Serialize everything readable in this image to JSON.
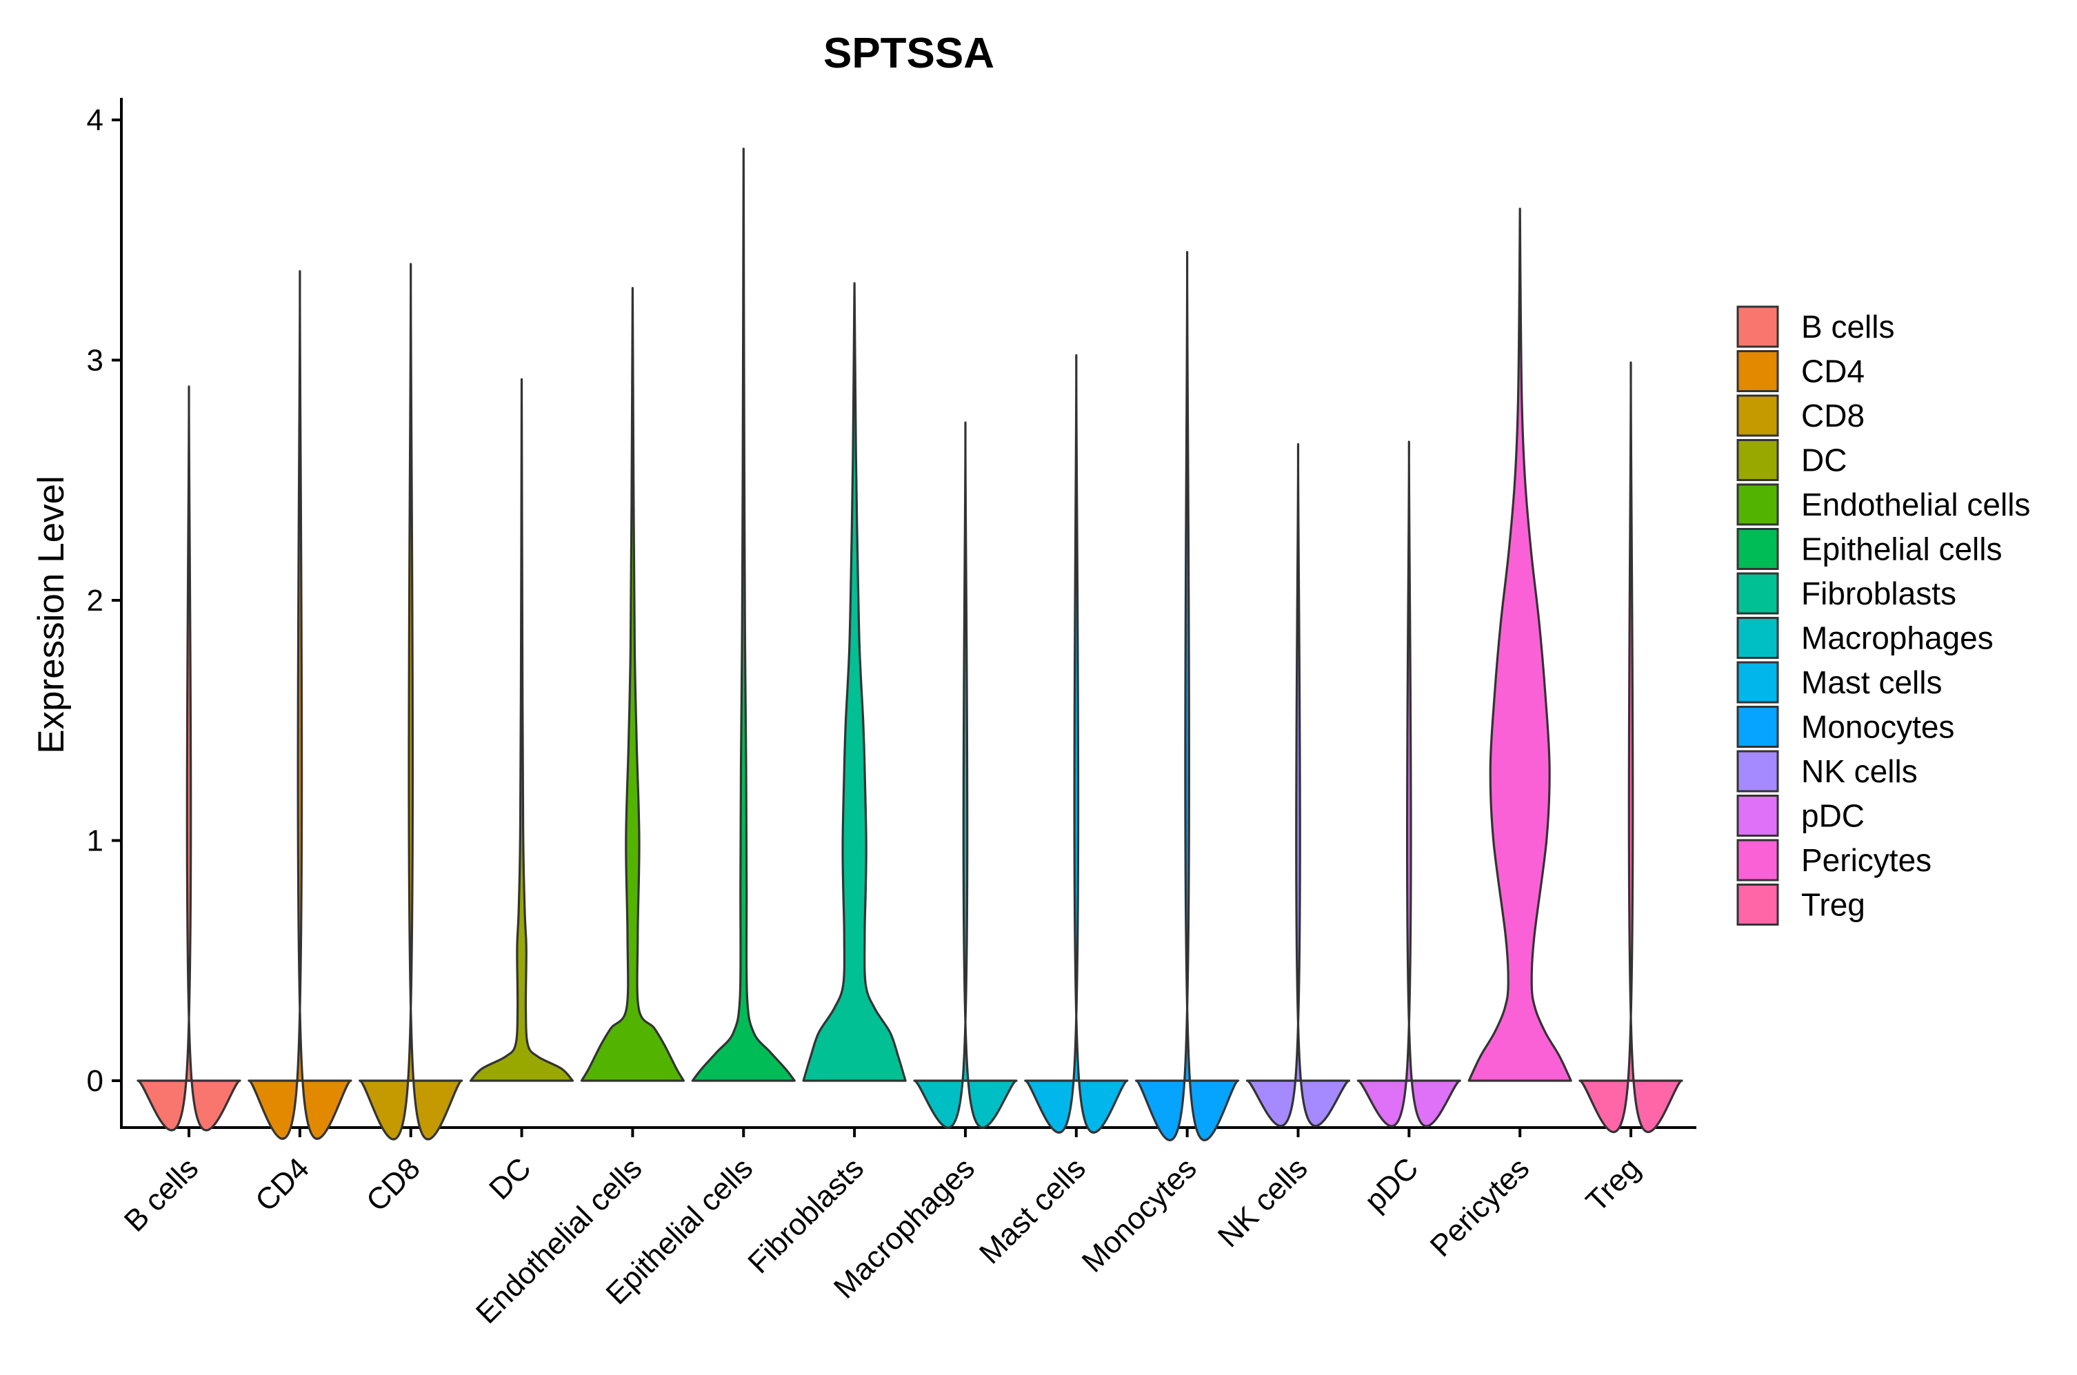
{
  "chart_data": {
    "type": "violin",
    "title": "SPTSSA",
    "xlabel": "",
    "ylabel": "Expression Level",
    "ylim": [
      -0.19,
      4.08
    ],
    "yticks": [
      0,
      1,
      2,
      3,
      4
    ],
    "grid": false,
    "legend_position": "right",
    "categories": [
      "B cells",
      "CD4",
      "CD8",
      "DC",
      "Endothelial cells",
      "Epithelial cells",
      "Fibroblasts",
      "Macrophages",
      "Mast cells",
      "Monocytes",
      "NK cells",
      "pDC",
      "Pericytes",
      "Treg"
    ],
    "colors": [
      "#F8766D",
      "#E38900",
      "#C49A00",
      "#99A800",
      "#53B400",
      "#00BC56",
      "#00C094",
      "#00BFC4",
      "#00B6EB",
      "#06A4FF",
      "#A58AFF",
      "#DF70F8",
      "#FB61D7",
      "#FF66A8"
    ],
    "max_values": [
      2.89,
      3.37,
      3.4,
      2.92,
      3.3,
      3.88,
      3.32,
      2.74,
      3.02,
      3.45,
      2.65,
      2.66,
      3.63,
      2.99
    ],
    "density_profiles": [
      [
        [
          0,
          1.0
        ],
        [
          0.01,
          0.05
        ],
        [
          2.89,
          0.0
        ]
      ],
      [
        [
          0,
          1.0
        ],
        [
          0.01,
          0.05
        ],
        [
          3.37,
          0.0
        ]
      ],
      [
        [
          0,
          1.0
        ],
        [
          0.01,
          0.05
        ],
        [
          3.4,
          0.0
        ]
      ],
      [
        [
          0,
          1.0
        ],
        [
          0.05,
          0.78
        ],
        [
          0.1,
          0.32
        ],
        [
          0.15,
          0.12
        ],
        [
          0.3,
          0.08
        ],
        [
          0.55,
          0.09
        ],
        [
          0.7,
          0.06
        ],
        [
          1.0,
          0.03
        ],
        [
          1.6,
          0.015
        ],
        [
          2.92,
          0.0
        ]
      ],
      [
        [
          0,
          1.0
        ],
        [
          0.05,
          0.86
        ],
        [
          0.15,
          0.62
        ],
        [
          0.22,
          0.42
        ],
        [
          0.3,
          0.12
        ],
        [
          0.6,
          0.1
        ],
        [
          1.0,
          0.13
        ],
        [
          1.4,
          0.08
        ],
        [
          1.8,
          0.04
        ],
        [
          2.4,
          0.02
        ],
        [
          3.3,
          0.0
        ]
      ],
      [
        [
          0,
          1.0
        ],
        [
          0.05,
          0.82
        ],
        [
          0.12,
          0.52
        ],
        [
          0.2,
          0.2
        ],
        [
          0.35,
          0.07
        ],
        [
          0.8,
          0.06
        ],
        [
          1.3,
          0.05
        ],
        [
          1.8,
          0.03
        ],
        [
          2.5,
          0.015
        ],
        [
          3.88,
          0.0
        ]
      ],
      [
        [
          0,
          1.0
        ],
        [
          0.1,
          0.86
        ],
        [
          0.2,
          0.7
        ],
        [
          0.3,
          0.4
        ],
        [
          0.4,
          0.22
        ],
        [
          0.6,
          0.2
        ],
        [
          0.8,
          0.22
        ],
        [
          1.0,
          0.23
        ],
        [
          1.3,
          0.2
        ],
        [
          1.5,
          0.17
        ],
        [
          1.8,
          0.1
        ],
        [
          2.2,
          0.06
        ],
        [
          2.6,
          0.03
        ],
        [
          3.32,
          0.0
        ]
      ],
      [
        [
          0,
          1.0
        ],
        [
          0.01,
          0.05
        ],
        [
          2.74,
          0.0
        ]
      ],
      [
        [
          0,
          1.0
        ],
        [
          0.01,
          0.05
        ],
        [
          3.02,
          0.0
        ]
      ],
      [
        [
          0,
          1.0
        ],
        [
          0.01,
          0.05
        ],
        [
          3.45,
          0.0
        ]
      ],
      [
        [
          0,
          1.0
        ],
        [
          0.01,
          0.05
        ],
        [
          2.65,
          0.0
        ]
      ],
      [
        [
          0,
          1.0
        ],
        [
          0.01,
          0.05
        ],
        [
          2.66,
          0.0
        ]
      ],
      [
        [
          0,
          1.0
        ],
        [
          0.1,
          0.78
        ],
        [
          0.2,
          0.5
        ],
        [
          0.3,
          0.3
        ],
        [
          0.4,
          0.23
        ],
        [
          0.6,
          0.28
        ],
        [
          1.0,
          0.52
        ],
        [
          1.3,
          0.58
        ],
        [
          1.6,
          0.5
        ],
        [
          1.9,
          0.38
        ],
        [
          2.2,
          0.22
        ],
        [
          2.5,
          0.1
        ],
        [
          2.8,
          0.04
        ],
        [
          3.2,
          0.015
        ],
        [
          3.63,
          0.0
        ]
      ],
      [
        [
          0,
          1.0
        ],
        [
          0.01,
          0.05
        ],
        [
          2.99,
          0.0
        ]
      ]
    ]
  }
}
